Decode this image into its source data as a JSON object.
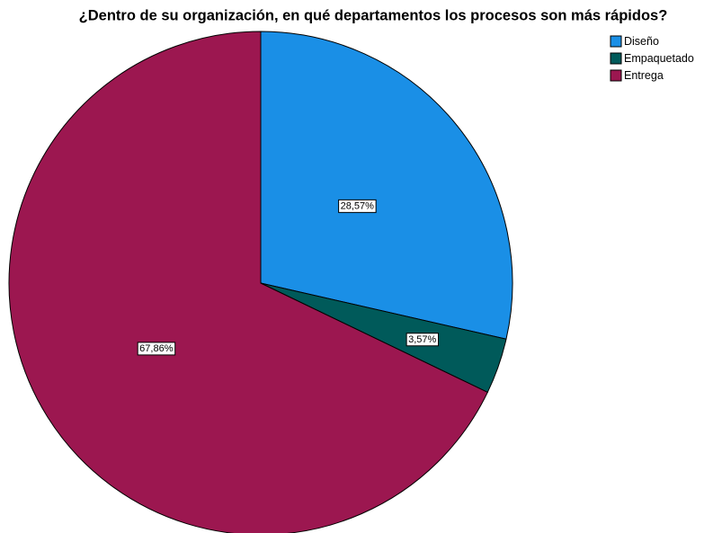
{
  "chart_data": {
    "type": "pie",
    "title": "¿Dentro de su organización, en qué departamentos los procesos son más rápidos?",
    "categories": [
      "Diseño",
      "Empaquetado",
      "Entrega"
    ],
    "values": [
      28.57,
      3.57,
      67.86
    ],
    "value_labels": [
      "28,57%",
      "3,57%",
      "67,86%"
    ],
    "colors": [
      "#1a8fe6",
      "#005a5a",
      "#9c1750"
    ],
    "legend": "top-right"
  }
}
